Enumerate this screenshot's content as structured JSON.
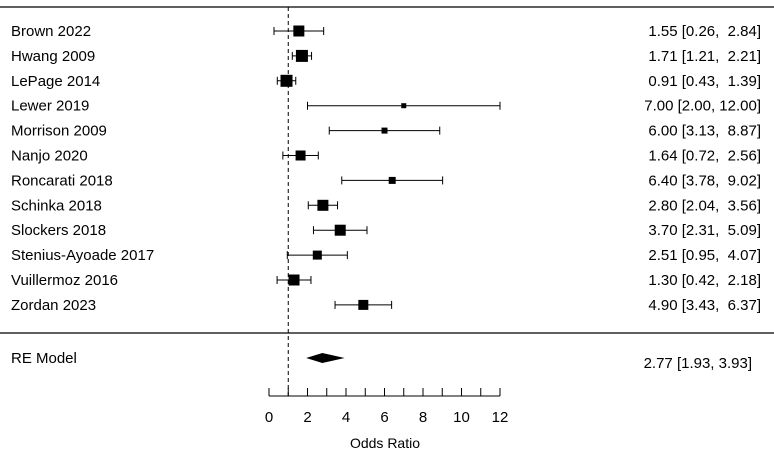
{
  "chart_data": {
    "type": "forest",
    "xlabel": "Odds Ratio",
    "xlim": [
      0,
      12
    ],
    "xticks": [
      0,
      2,
      4,
      6,
      8,
      10,
      12
    ],
    "reference_line": 1,
    "studies": [
      {
        "label": "Brown 2022",
        "estimate": 1.55,
        "lower": 0.26,
        "upper": 2.84,
        "ci_text": "1.55 [0.26,  2.84]"
      },
      {
        "label": "Hwang 2009",
        "estimate": 1.71,
        "lower": 1.21,
        "upper": 2.21,
        "ci_text": "1.71 [1.21,  2.21]"
      },
      {
        "label": "LePage 2014",
        "estimate": 0.91,
        "lower": 0.43,
        "upper": 1.39,
        "ci_text": "0.91 [0.43,  1.39]"
      },
      {
        "label": "Lewer 2019",
        "estimate": 7.0,
        "lower": 2.0,
        "upper": 12.0,
        "ci_text": "7.00 [2.00, 12.00]"
      },
      {
        "label": "Morrison 2009",
        "estimate": 6.0,
        "lower": 3.13,
        "upper": 8.87,
        "ci_text": "6.00 [3.13,  8.87]"
      },
      {
        "label": "Nanjo 2020",
        "estimate": 1.64,
        "lower": 0.72,
        "upper": 2.56,
        "ci_text": "1.64 [0.72,  2.56]"
      },
      {
        "label": "Roncarati 2018",
        "estimate": 6.4,
        "lower": 3.78,
        "upper": 9.02,
        "ci_text": "6.40 [3.78,  9.02]"
      },
      {
        "label": "Schinka 2018",
        "estimate": 2.8,
        "lower": 2.04,
        "upper": 3.56,
        "ci_text": "2.80 [2.04,  3.56]"
      },
      {
        "label": "Slockers 2018",
        "estimate": 3.7,
        "lower": 2.31,
        "upper": 5.09,
        "ci_text": "3.70 [2.31,  5.09]"
      },
      {
        "label": "Stenius-Ayoade 2017",
        "estimate": 2.51,
        "lower": 0.95,
        "upper": 4.07,
        "ci_text": "2.51 [0.95,  4.07]"
      },
      {
        "label": "Vuillermoz 2016",
        "estimate": 1.3,
        "lower": 0.42,
        "upper": 2.18,
        "ci_text": "1.30 [0.42,  2.18]"
      },
      {
        "label": "Zordan 2023",
        "estimate": 4.9,
        "lower": 3.43,
        "upper": 6.37,
        "ci_text": "4.90 [3.43,  6.37]"
      }
    ],
    "summary": {
      "label": "RE Model",
      "estimate": 2.77,
      "lower": 1.93,
      "upper": 3.93,
      "ci_text": "2.77 [1.93, 3.93]"
    }
  }
}
